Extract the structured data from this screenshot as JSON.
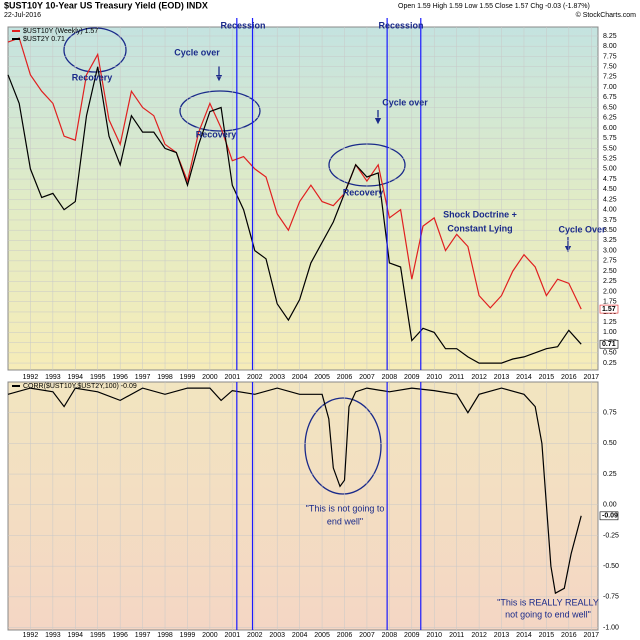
{
  "chart_data": [
    {
      "type": "line",
      "title": "$UST10Y 10-Year US Treasury Yield (EOD) INDX",
      "subtitle": "22-Jul-2016",
      "quote": "Open 1.59  High 1.59  Low 1.55  Close 1.57  Chg -0.03 (-1.87%)",
      "credit": "© StockCharts.com",
      "x": [
        1991,
        1991.5,
        1992,
        1992.5,
        1993,
        1993.5,
        1994,
        1994.5,
        1995,
        1995.5,
        1996,
        1996.5,
        1997,
        1997.5,
        1998,
        1998.5,
        1999,
        1999.5,
        2000,
        2000.5,
        2001,
        2001.5,
        2002,
        2002.5,
        2003,
        2003.5,
        2004,
        2004.5,
        2005,
        2005.5,
        2006,
        2006.5,
        2007,
        2007.5,
        2008,
        2008.5,
        2009,
        2009.5,
        2010,
        2010.5,
        2011,
        2011.5,
        2012,
        2012.5,
        2013,
        2013.5,
        2014,
        2014.5,
        2015,
        2015.5,
        2016,
        2016.55
      ],
      "series": [
        {
          "name": "$UST10Y (Weekly) 1.57",
          "color": "#e02020",
          "values": [
            8.1,
            8.2,
            7.3,
            6.9,
            6.6,
            5.8,
            5.7,
            7.3,
            7.8,
            6.2,
            5.6,
            6.9,
            6.5,
            6.3,
            5.6,
            5.4,
            4.7,
            5.9,
            6.6,
            6.0,
            5.2,
            5.3,
            5.0,
            4.8,
            3.9,
            3.5,
            4.2,
            4.6,
            4.2,
            4.1,
            4.4,
            5.1,
            4.7,
            5.1,
            3.8,
            4.0,
            2.3,
            3.6,
            3.8,
            3.0,
            3.4,
            3.1,
            1.9,
            1.6,
            1.9,
            2.5,
            2.9,
            2.6,
            1.9,
            2.3,
            2.2,
            1.57
          ]
        },
        {
          "name": "$UST2Y 0.71",
          "color": "#000000",
          "values": [
            7.3,
            6.6,
            5.0,
            4.3,
            4.4,
            4.0,
            4.2,
            6.3,
            7.5,
            5.8,
            5.1,
            6.3,
            5.9,
            5.9,
            5.5,
            5.4,
            4.6,
            5.6,
            6.4,
            6.5,
            4.6,
            4.0,
            3.0,
            2.8,
            1.7,
            1.3,
            1.8,
            2.7,
            3.2,
            3.7,
            4.4,
            5.1,
            4.8,
            4.9,
            2.7,
            2.6,
            0.8,
            1.1,
            1.0,
            0.6,
            0.6,
            0.4,
            0.25,
            0.25,
            0.25,
            0.35,
            0.4,
            0.5,
            0.6,
            0.65,
            1.05,
            0.71
          ]
        }
      ],
      "xlim": [
        1991,
        2017.3
      ],
      "xticks": [
        1992,
        1993,
        1994,
        1995,
        1996,
        1997,
        1998,
        1999,
        2000,
        2001,
        2002,
        2003,
        2004,
        2005,
        2006,
        2007,
        2008,
        2009,
        2010,
        2011,
        2012,
        2013,
        2014,
        2015,
        2016,
        2017
      ],
      "ylim": [
        0.08,
        8.47
      ],
      "yticks": [
        0.25,
        {
          "value": 0.5,
          "label": "0.50"
        },
        0.75,
        {
          "value": 1,
          "label": "1.00"
        },
        1.25,
        {
          "value": 1.5,
          "label": "1.50"
        },
        1.75,
        {
          "value": 2,
          "label": "2.00"
        },
        2.25,
        {
          "value": 2.5,
          "label": "2.50"
        },
        2.75,
        {
          "value": 3,
          "label": "3.00"
        },
        3.25,
        {
          "value": 3.5,
          "label": "3.50"
        },
        3.75,
        {
          "value": 4,
          "label": "4.00"
        },
        4.25,
        {
          "value": 4.5,
          "label": "4.50"
        },
        4.75,
        {
          "value": 5,
          "label": "5.00"
        },
        5.25,
        {
          "value": 5.5,
          "label": "5.50"
        },
        5.75,
        {
          "value": 6,
          "label": "6.00"
        },
        6.25,
        {
          "value": 6.5,
          "label": "6.50"
        },
        6.75,
        {
          "value": 7,
          "label": "7.00"
        },
        7.25,
        {
          "value": 7.5,
          "label": "7.50"
        },
        7.75,
        {
          "value": 8,
          "label": "8.00"
        },
        8.25
      ],
      "grid": true,
      "vlines": [
        2001.2,
        2001.9,
        2007.9,
        2009.4
      ],
      "annotations": [
        "Recovery",
        "Cycle over",
        "Recovery",
        "Recession",
        "Recovery",
        "Cycle over",
        "Recession",
        "Shock Doctrine +",
        "Constant Lying",
        "Cycle Over"
      ]
    },
    {
      "type": "line",
      "x": [
        1991,
        1992,
        1993,
        1993.5,
        1994,
        1995,
        1996,
        1997,
        1998,
        1999,
        2000,
        2000.5,
        2001,
        2002,
        2003,
        2004,
        2005,
        2005.3,
        2005.5,
        2005.8,
        2006.0,
        2006.2,
        2006.5,
        2007,
        2008,
        2009,
        2010,
        2011,
        2011.5,
        2012,
        2013,
        2014,
        2014.5,
        2014.8,
        2015.0,
        2015.2,
        2015.4,
        2015.8,
        2016.1,
        2016.55
      ],
      "series": [
        {
          "name": "CORR($UST10Y,$UST2Y,100) -0.09",
          "color": "#000000",
          "values": [
            0.9,
            0.95,
            0.92,
            0.8,
            0.95,
            0.92,
            0.85,
            0.95,
            0.9,
            0.95,
            0.95,
            0.85,
            0.93,
            0.9,
            0.95,
            0.9,
            0.9,
            0.7,
            0.3,
            0.15,
            0.2,
            0.8,
            0.92,
            0.95,
            0.92,
            0.95,
            0.93,
            0.9,
            0.75,
            0.9,
            0.95,
            0.9,
            0.8,
            0.5,
            0.0,
            -0.5,
            -0.72,
            -0.68,
            -0.4,
            -0.09
          ]
        }
      ],
      "xlim": [
        1991,
        2017.3
      ],
      "xticks": [
        1992,
        1993,
        1994,
        1995,
        1996,
        1997,
        1998,
        1999,
        2000,
        2001,
        2002,
        2003,
        2004,
        2005,
        2006,
        2007,
        2008,
        2009,
        2010,
        2011,
        2012,
        2013,
        2014,
        2015,
        2016,
        2017
      ],
      "ylim": [
        -1.02,
        1.0
      ],
      "yticks": [
        0.75,
        {
          "value": 0.5,
          "label": "0.50"
        },
        0.25,
        {
          "value": 0,
          "label": "0.00"
        },
        -0.25,
        {
          "value": -0.5,
          "label": "-0.50"
        },
        -0.75,
        {
          "value": -1,
          "label": "-1.00"
        }
      ],
      "grid": true,
      "vlines": [
        2001.2,
        2001.9,
        2007.9,
        2009.4
      ],
      "annotations": [
        "\"This is not going to",
        "end well\"",
        "\"This is REALLY REALLY",
        "not going to end well\""
      ]
    }
  ]
}
